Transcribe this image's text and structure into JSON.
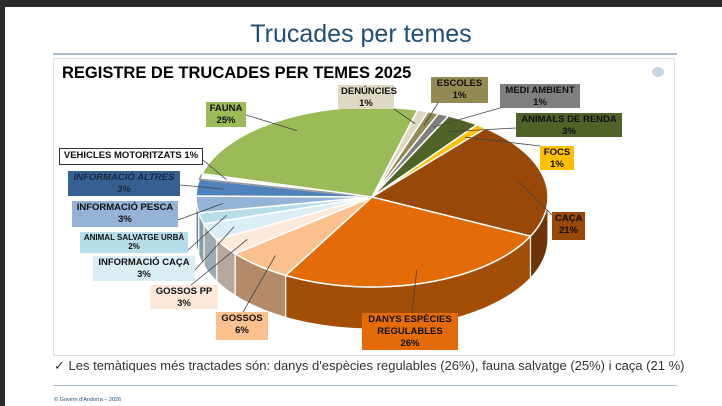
{
  "slide_title": "Trucades per temes",
  "bullet": "✓ Les temàtiques més tractades són: danys d'espècies regulables (26%), fauna salvatge (25%) i caça (21 %)",
  "footer": "© Govern d'Andorra – 2026",
  "chart_data": {
    "type": "pie",
    "title": "REGISTRE DE TRUCADES PER TEMES 2025",
    "three_d": true,
    "slices": [
      {
        "label": "DENÚNCIES",
        "value": 1,
        "pct": "1%",
        "color": "#ddd9c3"
      },
      {
        "label": "ESCOLES",
        "value": 1,
        "pct": "1%",
        "color": "#948a54"
      },
      {
        "label": "MEDI AMBIENT",
        "value": 1,
        "pct": "1%",
        "color": "#7f7f7f"
      },
      {
        "label": "ANIMALS DE RENDA",
        "value": 3,
        "pct": "3%",
        "color": "#4f6228"
      },
      {
        "label": "FOCS",
        "value": 1,
        "pct": "1%",
        "color": "#ffc000"
      },
      {
        "label": "CAÇA",
        "value": 21,
        "pct": "21%",
        "color": "#984807"
      },
      {
        "label": "DANYS ESPÈCIES REGULABLES",
        "value": 26,
        "pct": "26%",
        "color": "#e36c09"
      },
      {
        "label": "GOSSOS",
        "value": 6,
        "pct": "6%",
        "color": "#fac090"
      },
      {
        "label": "GOSSOS PP",
        "value": 3,
        "pct": "3%",
        "color": "#fde9d9"
      },
      {
        "label": "INFORMACIÓ CAÇA",
        "value": 3,
        "pct": "3%",
        "color": "#dbeef4"
      },
      {
        "label": "ANIMAL SALVATGE URBÀ",
        "value": 2,
        "pct": "2%",
        "color": "#b7dde8"
      },
      {
        "label": "INFORMACIÓ PESCA",
        "value": 3,
        "pct": "3%",
        "color": "#95b3d7"
      },
      {
        "label": "INFORMACIÓ ALTRES",
        "value": 3,
        "pct": "3%",
        "color": "#4f81bd"
      },
      {
        "label": "VEHICLES MOTORITZATS",
        "value": 1,
        "pct": "1%",
        "color": "#ffffff"
      },
      {
        "label": "FAUNA",
        "value": 25,
        "pct": "25%",
        "color": "#9bbb59"
      }
    ]
  }
}
